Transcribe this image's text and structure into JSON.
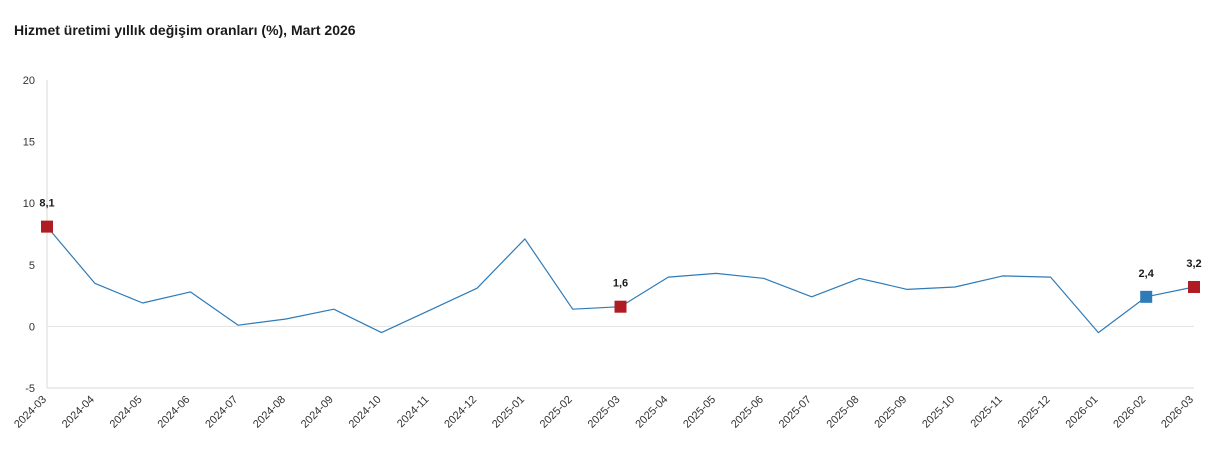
{
  "chart_data": {
    "type": "line",
    "title": "Hizmet üretimi yıllık değişim oranları (%), Mart 2026",
    "xlabel": "",
    "ylabel": "",
    "ylim": [
      -5,
      20
    ],
    "yticks": [
      -5,
      0,
      5,
      10,
      15,
      20
    ],
    "categories": [
      "2024-03",
      "2024-04",
      "2024-05",
      "2024-06",
      "2024-07",
      "2024-08",
      "2024-09",
      "2024-10",
      "2024-11",
      "2024-12",
      "2025-01",
      "2025-02",
      "2025-03",
      "2025-04",
      "2025-05",
      "2025-06",
      "2025-07",
      "2025-08",
      "2025-09",
      "2025-10",
      "2025-11",
      "2025-12",
      "2026-01",
      "2026-02",
      "2026-03"
    ],
    "series": [
      {
        "values": [
          8.1,
          3.5,
          1.9,
          2.8,
          0.1,
          0.6,
          1.4,
          -0.5,
          1.3,
          3.1,
          7.1,
          1.4,
          1.6,
          4.0,
          4.3,
          3.9,
          2.4,
          3.9,
          3.0,
          3.2,
          4.1,
          4.0,
          -0.5,
          2.4,
          3.2
        ],
        "color": "#2e7bb8"
      }
    ],
    "highlights": [
      {
        "category": "2024-03",
        "label": "8,1",
        "color": "#b01c24"
      },
      {
        "category": "2025-03",
        "label": "1,6",
        "color": "#b01c24"
      },
      {
        "category": "2026-02",
        "label": "2,4",
        "color": "#2e7bb8"
      },
      {
        "category": "2026-03",
        "label": "3,2",
        "color": "#b01c24"
      }
    ],
    "grid": false,
    "legend": "none"
  }
}
